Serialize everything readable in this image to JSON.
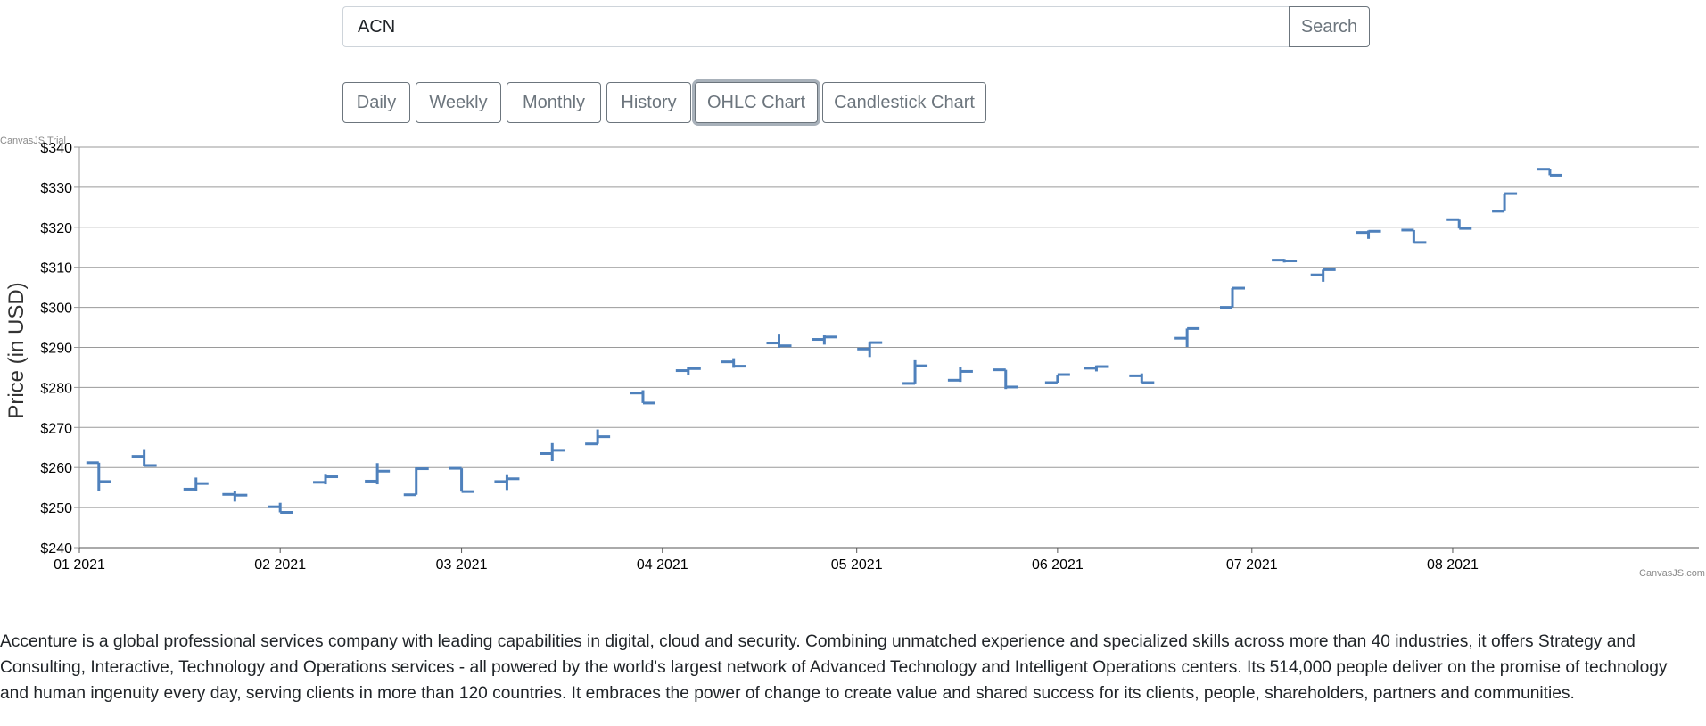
{
  "search": {
    "value": "ACN",
    "button_label": "Search"
  },
  "tabs": [
    {
      "label": "Daily",
      "active": false
    },
    {
      "label": "Weekly",
      "active": false
    },
    {
      "label": "Monthly",
      "active": false
    },
    {
      "label": "History",
      "active": false
    },
    {
      "label": "OHLC Chart",
      "active": true
    },
    {
      "label": "Candlestick Chart",
      "active": false
    }
  ],
  "chart_credit_top": "CanvasJS Trial",
  "chart_credit_bottom": "CanvasJS.com",
  "chart_data": {
    "type": "ohlc",
    "title": "",
    "ylabel": "Price (in USD)",
    "xlabel": "",
    "ylim": [
      240,
      340
    ],
    "y_ticks": [
      240,
      250,
      260,
      270,
      280,
      290,
      300,
      310,
      320,
      330,
      340
    ],
    "y_tick_prefix": "$",
    "x_ticks": [
      "01 2021",
      "02 2021",
      "03 2021",
      "04 2021",
      "05 2021",
      "06 2021",
      "07 2021",
      "08 2021"
    ],
    "x_range": [
      "2021-01-01",
      "2021-09-08"
    ],
    "grid": true,
    "color": "#4f81bc",
    "points": [
      {
        "date": "2021-01-04",
        "open": 261.2,
        "high": 261.2,
        "low": 254.2,
        "close": 256.5
      },
      {
        "date": "2021-01-11",
        "open": 262.8,
        "high": 264.6,
        "low": 260.5,
        "close": 260.5
      },
      {
        "date": "2021-01-19",
        "open": 254.6,
        "high": 257.5,
        "low": 254.2,
        "close": 256.0
      },
      {
        "date": "2021-01-25",
        "open": 253.3,
        "high": 254.2,
        "low": 251.5,
        "close": 253.1
      },
      {
        "date": "2021-02-01",
        "open": 250.2,
        "high": 251.2,
        "low": 248.8,
        "close": 248.8
      },
      {
        "date": "2021-02-08",
        "open": 256.3,
        "high": 258.2,
        "low": 255.8,
        "close": 257.7
      },
      {
        "date": "2021-02-16",
        "open": 256.6,
        "high": 261.1,
        "low": 255.8,
        "close": 259.1
      },
      {
        "date": "2021-02-22",
        "open": 253.2,
        "high": 260.0,
        "low": 253.2,
        "close": 259.7
      },
      {
        "date": "2021-03-01",
        "open": 259.8,
        "high": 259.8,
        "low": 254.0,
        "close": 254.0
      },
      {
        "date": "2021-03-08",
        "open": 256.5,
        "high": 258.1,
        "low": 254.4,
        "close": 257.2
      },
      {
        "date": "2021-03-15",
        "open": 263.5,
        "high": 266.1,
        "low": 261.6,
        "close": 264.3
      },
      {
        "date": "2021-03-22",
        "open": 265.9,
        "high": 269.5,
        "low": 265.9,
        "close": 267.7
      },
      {
        "date": "2021-03-29",
        "open": 278.6,
        "high": 279.3,
        "low": 276.1,
        "close": 276.1
      },
      {
        "date": "2021-04-05",
        "open": 284.2,
        "high": 285.1,
        "low": 283.2,
        "close": 284.7
      },
      {
        "date": "2021-04-12",
        "open": 286.4,
        "high": 287.3,
        "low": 284.9,
        "close": 285.3
      },
      {
        "date": "2021-04-19",
        "open": 291.1,
        "high": 293.2,
        "low": 289.9,
        "close": 290.4
      },
      {
        "date": "2021-04-26",
        "open": 292.0,
        "high": 293.0,
        "low": 290.7,
        "close": 292.6
      },
      {
        "date": "2021-05-03",
        "open": 289.6,
        "high": 291.2,
        "low": 287.6,
        "close": 291.2
      },
      {
        "date": "2021-05-10",
        "open": 281.0,
        "high": 286.8,
        "low": 281.0,
        "close": 285.4
      },
      {
        "date": "2021-05-17",
        "open": 281.8,
        "high": 285.0,
        "low": 281.4,
        "close": 284.0
      },
      {
        "date": "2021-05-24",
        "open": 284.4,
        "high": 284.4,
        "low": 279.6,
        "close": 280.1
      },
      {
        "date": "2021-06-01",
        "open": 281.2,
        "high": 283.2,
        "low": 281.2,
        "close": 283.2
      },
      {
        "date": "2021-06-07",
        "open": 284.8,
        "high": 285.5,
        "low": 284.0,
        "close": 285.2
      },
      {
        "date": "2021-06-14",
        "open": 282.9,
        "high": 283.5,
        "low": 281.2,
        "close": 281.2
      },
      {
        "date": "2021-06-21",
        "open": 292.3,
        "high": 294.7,
        "low": 290.1,
        "close": 294.7
      },
      {
        "date": "2021-06-28",
        "open": 300.0,
        "high": 304.8,
        "low": 300.0,
        "close": 304.8
      },
      {
        "date": "2021-07-06",
        "open": 311.8,
        "high": 312.1,
        "low": 311.2,
        "close": 311.6
      },
      {
        "date": "2021-07-12",
        "open": 308.1,
        "high": 309.4,
        "low": 306.4,
        "close": 309.4
      },
      {
        "date": "2021-07-19",
        "open": 318.7,
        "high": 319.2,
        "low": 317.1,
        "close": 319.0
      },
      {
        "date": "2021-07-26",
        "open": 319.3,
        "high": 319.3,
        "low": 316.2,
        "close": 316.2
      },
      {
        "date": "2021-08-02",
        "open": 321.9,
        "high": 321.9,
        "low": 319.7,
        "close": 319.7
      },
      {
        "date": "2021-08-09",
        "open": 324.0,
        "high": 328.4,
        "low": 324.0,
        "close": 328.4
      },
      {
        "date": "2021-08-16",
        "open": 334.5,
        "high": 334.5,
        "low": 333.0,
        "close": 333.0
      }
    ]
  },
  "description": "Accenture is a global professional services company with leading capabilities in digital, cloud and security. Combining unmatched experience and specialized skills across more than 40 industries, it offers Strategy and Consulting, Interactive, Technology and Operations services - all powered by the world's largest network of Advanced Technology and Intelligent Operations centers. Its 514,000 people deliver on the promise of technology and human ingenuity every day, serving clients in more than 120 countries. It embraces the power of change to create value and shared success for its clients, people, shareholders, partners and communities."
}
